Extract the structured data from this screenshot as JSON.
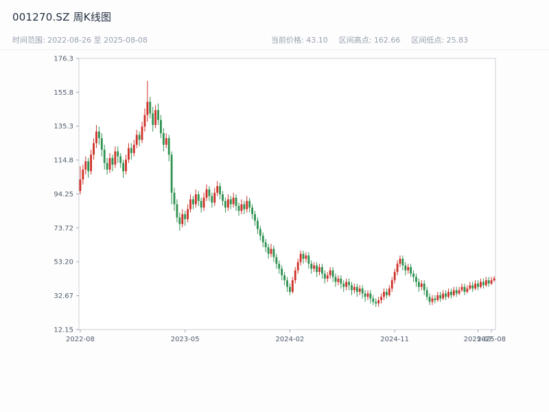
{
  "header": {
    "title": "001270.SZ 周K线图",
    "time_range": "时间范围: 2022-08-26 至 2025-08-08",
    "stat_price": "当前价格: 43.10",
    "stat_high": "区间高点: 162.66",
    "stat_low": "区间低点: 25.83"
  },
  "chart_data": {
    "type": "candlestick",
    "title": "001270.SZ 周K线图",
    "symbol": "001270.SZ",
    "interval": "weekly",
    "date_start": "2022-08-26",
    "date_end": "2025-08-08",
    "current_price": 43.1,
    "range_high": 162.66,
    "range_low": 25.83,
    "ylim": [
      12.15,
      176.3
    ],
    "yticks": [
      12.15,
      32.67,
      53.2,
      73.72,
      94.25,
      114.8,
      135.3,
      155.8,
      176.3
    ],
    "ytick_labels": [
      "12.15",
      "32.67",
      "53.20",
      "73.72",
      "94.25",
      "114.8",
      "135.3",
      "155.8",
      "176.3"
    ],
    "xticks": [
      {
        "week": 0,
        "label": "2022-08"
      },
      {
        "week": 39,
        "label": "2023-05"
      },
      {
        "week": 78,
        "label": "2024-02"
      },
      {
        "week": 117,
        "label": "2024-11"
      },
      {
        "week": 148,
        "label": "2025-07"
      },
      {
        "week": 153,
        "label": "2025-08"
      }
    ],
    "grid": false,
    "legend": "none",
    "colors": {
      "up": "#cf3028",
      "down": "#2e9150",
      "spine": "#c9ced6",
      "tick": "#9aa3ad",
      "tick_label": "#4d5a68"
    },
    "candles": [
      [
        96,
        111,
        94,
        103
      ],
      [
        103,
        112,
        100,
        109
      ],
      [
        109,
        117,
        106,
        114
      ],
      [
        114,
        116,
        104,
        108
      ],
      [
        108,
        121,
        106,
        118
      ],
      [
        118,
        128,
        115,
        125
      ],
      [
        125,
        136,
        122,
        132
      ],
      [
        132,
        135,
        124,
        128
      ],
      [
        128,
        131,
        117,
        121
      ],
      [
        121,
        124,
        109,
        113
      ],
      [
        113,
        116,
        106,
        109
      ],
      [
        109,
        119,
        107,
        116
      ],
      [
        116,
        118,
        108,
        112
      ],
      [
        112,
        123,
        110,
        120
      ],
      [
        120,
        123,
        113,
        117
      ],
      [
        117,
        119,
        110,
        113
      ],
      [
        113,
        115,
        104,
        108
      ],
      [
        108,
        118,
        106,
        115
      ],
      [
        115,
        125,
        113,
        122
      ],
      [
        122,
        125,
        115,
        119
      ],
      [
        119,
        127,
        117,
        124
      ],
      [
        124,
        133,
        122,
        130
      ],
      [
        130,
        132,
        123,
        127
      ],
      [
        127,
        138,
        125,
        135
      ],
      [
        135,
        146,
        132,
        142
      ],
      [
        142,
        162.66,
        138,
        150
      ],
      [
        150,
        153,
        140,
        143
      ],
      [
        143,
        147,
        132,
        136
      ],
      [
        136,
        148,
        134,
        145
      ],
      [
        145,
        149,
        136,
        139
      ],
      [
        139,
        142,
        128,
        131
      ],
      [
        131,
        134,
        120,
        124
      ],
      [
        124,
        131,
        122,
        128
      ],
      [
        128,
        130,
        114,
        118
      ],
      [
        118,
        120,
        88,
        95
      ],
      [
        95,
        98,
        84,
        88
      ],
      [
        88,
        91,
        77,
        80
      ],
      [
        80,
        83,
        72,
        76
      ],
      [
        76,
        85,
        74,
        82
      ],
      [
        82,
        84,
        75,
        79
      ],
      [
        79,
        88,
        77,
        85
      ],
      [
        85,
        94,
        83,
        91
      ],
      [
        91,
        93,
        85,
        88
      ],
      [
        88,
        97,
        86,
        94
      ],
      [
        94,
        96,
        87,
        90
      ],
      [
        90,
        92,
        83,
        86
      ],
      [
        86,
        95,
        84,
        92
      ],
      [
        92,
        100,
        90,
        97
      ],
      [
        97,
        99,
        90,
        93
      ],
      [
        93,
        95,
        86,
        89
      ],
      [
        89,
        98,
        87,
        95
      ],
      [
        95,
        102,
        93,
        99
      ],
      [
        99,
        101,
        91,
        94
      ],
      [
        94,
        96,
        87,
        90
      ],
      [
        90,
        92,
        83,
        86
      ],
      [
        86,
        94,
        84,
        91
      ],
      [
        91,
        93,
        85,
        88
      ],
      [
        88,
        95,
        86,
        92
      ],
      [
        92,
        94,
        84,
        87
      ],
      [
        87,
        89,
        81,
        84
      ],
      [
        84,
        91,
        82,
        88
      ],
      [
        88,
        90,
        82,
        85
      ],
      [
        85,
        93,
        83,
        90
      ],
      [
        90,
        92,
        83,
        86
      ],
      [
        86,
        88,
        79,
        82
      ],
      [
        82,
        84,
        75,
        78
      ],
      [
        78,
        80,
        70,
        73
      ],
      [
        73,
        75,
        66,
        69
      ],
      [
        69,
        71,
        62,
        65
      ],
      [
        65,
        67,
        59,
        62
      ],
      [
        62,
        64,
        55,
        58
      ],
      [
        58,
        64,
        56,
        61
      ],
      [
        61,
        63,
        53,
        56
      ],
      [
        56,
        58,
        49,
        52
      ],
      [
        52,
        54,
        46,
        49
      ],
      [
        49,
        51,
        42,
        45
      ],
      [
        45,
        47,
        39,
        42
      ],
      [
        42,
        44,
        35,
        38
      ],
      [
        38,
        40,
        33,
        35
      ],
      [
        35,
        44,
        34,
        42
      ],
      [
        42,
        50,
        40,
        48
      ],
      [
        48,
        55,
        46,
        53
      ],
      [
        53,
        60,
        51,
        58
      ],
      [
        58,
        60,
        52,
        55
      ],
      [
        55,
        59,
        53,
        57
      ],
      [
        57,
        59,
        49,
        52
      ],
      [
        52,
        54,
        46,
        49
      ],
      [
        49,
        53,
        47,
        51
      ],
      [
        51,
        53,
        44,
        47
      ],
      [
        47,
        52,
        45,
        50
      ],
      [
        50,
        52,
        43,
        46
      ],
      [
        46,
        48,
        40,
        43
      ],
      [
        43,
        47,
        41,
        45
      ],
      [
        45,
        50,
        43,
        48
      ],
      [
        48,
        50,
        41,
        44
      ],
      [
        44,
        46,
        38,
        41
      ],
      [
        41,
        45,
        39,
        43
      ],
      [
        43,
        45,
        37,
        40
      ],
      [
        40,
        42,
        35,
        38
      ],
      [
        38,
        43,
        36,
        41
      ],
      [
        41,
        43,
        36,
        39
      ],
      [
        39,
        41,
        33,
        36
      ],
      [
        36,
        40,
        34,
        38
      ],
      [
        38,
        40,
        32,
        35
      ],
      [
        35,
        39,
        33,
        37
      ],
      [
        37,
        39,
        31,
        34
      ],
      [
        34,
        36,
        29,
        32
      ],
      [
        32,
        36,
        30,
        34
      ],
      [
        34,
        36,
        28,
        31
      ],
      [
        31,
        33,
        27,
        29
      ],
      [
        29,
        31,
        25.83,
        28
      ],
      [
        28,
        32,
        26,
        30
      ],
      [
        30,
        34,
        28,
        32
      ],
      [
        32,
        37,
        30,
        35
      ],
      [
        35,
        37,
        31,
        33
      ],
      [
        33,
        39,
        32,
        37
      ],
      [
        37,
        44,
        35,
        42
      ],
      [
        42,
        49,
        40,
        47
      ],
      [
        47,
        54,
        45,
        52
      ],
      [
        52,
        57,
        50,
        55
      ],
      [
        55,
        57,
        48,
        51
      ],
      [
        51,
        53,
        45,
        48
      ],
      [
        48,
        52,
        46,
        50
      ],
      [
        50,
        52,
        44,
        46
      ],
      [
        46,
        48,
        41,
        44
      ],
      [
        44,
        46,
        38,
        41
      ],
      [
        41,
        43,
        35,
        38
      ],
      [
        38,
        42,
        36,
        40
      ],
      [
        40,
        42,
        33,
        36
      ],
      [
        36,
        38,
        30,
        32
      ],
      [
        32,
        34,
        27,
        29
      ],
      [
        29,
        33,
        27,
        31
      ],
      [
        31,
        33,
        28,
        30
      ],
      [
        30,
        35,
        29,
        33
      ],
      [
        33,
        35,
        29,
        31
      ],
      [
        31,
        36,
        30,
        34
      ],
      [
        34,
        36,
        30,
        32
      ],
      [
        32,
        37,
        31,
        35
      ],
      [
        35,
        37,
        31,
        33
      ],
      [
        33,
        38,
        32,
        36
      ],
      [
        36,
        38,
        32,
        34
      ],
      [
        34,
        38,
        33,
        36
      ],
      [
        36,
        40,
        35,
        38
      ],
      [
        38,
        40,
        33,
        35
      ],
      [
        35,
        39,
        34,
        37
      ],
      [
        37,
        41,
        36,
        39
      ],
      [
        39,
        41,
        35,
        37
      ],
      [
        37,
        42,
        36,
        40
      ],
      [
        40,
        42,
        36,
        38
      ],
      [
        38,
        43,
        37,
        41
      ],
      [
        41,
        43,
        37,
        39
      ],
      [
        39,
        44,
        38,
        42
      ],
      [
        42,
        44,
        38,
        40
      ],
      [
        40,
        44,
        39,
        42
      ],
      [
        42,
        44.5,
        41,
        43.1
      ]
    ]
  }
}
